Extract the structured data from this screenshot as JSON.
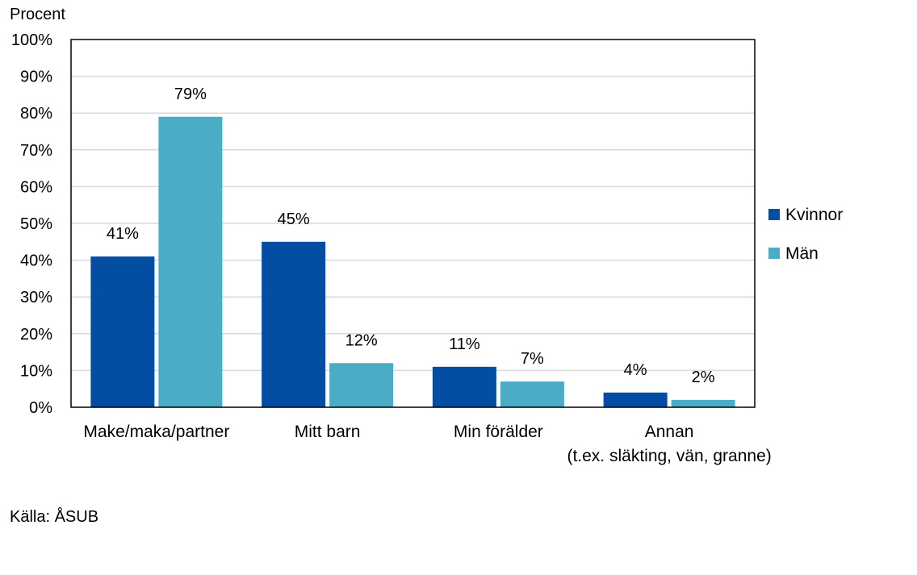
{
  "chart_data": {
    "type": "bar",
    "title": "",
    "xlabel": "",
    "ylabel": "Procent",
    "ylim": [
      0,
      100
    ],
    "yticks": [
      0,
      10,
      20,
      30,
      40,
      50,
      60,
      70,
      80,
      90,
      100
    ],
    "ytick_labels": [
      "0%",
      "10%",
      "20%",
      "30%",
      "40%",
      "50%",
      "60%",
      "70%",
      "80%",
      "90%",
      "100%"
    ],
    "grid": true,
    "legend_position": "right",
    "categories": [
      [
        "Make/maka/partner"
      ],
      [
        "Mitt barn"
      ],
      [
        "Min förälder"
      ],
      [
        "Annan",
        "(t.ex. släkting, vän, granne)"
      ]
    ],
    "series": [
      {
        "name": "Kvinnor",
        "color": "#034ea2",
        "values": [
          41,
          45,
          11,
          4
        ],
        "labels": [
          "41%",
          "45%",
          "11%",
          "4%"
        ]
      },
      {
        "name": "Män",
        "color": "#4bacc6",
        "values": [
          79,
          12,
          7,
          2
        ],
        "labels": [
          "79%",
          "12%",
          "7%",
          "2%"
        ]
      }
    ]
  },
  "source": "Källa: ÅSUB"
}
